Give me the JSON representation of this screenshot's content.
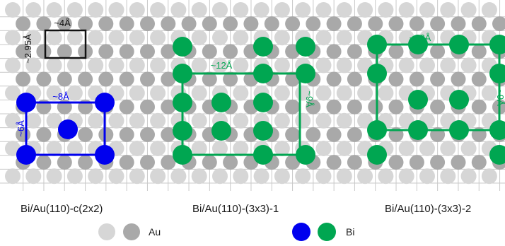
{
  "colors": {
    "au_light": "#d6d6d6",
    "au_dark": "#a9a9a9",
    "bi_blue": "#0000ee",
    "bi_green": "#00a651",
    "unit_cell_black": "#111111",
    "grid_line": "#c9c9c9"
  },
  "panels": [
    {
      "caption": "Bi/Au(110)-c(2x2)",
      "label_top": "~8Å",
      "label_side": "~6Å"
    },
    {
      "caption": "Bi/Au(110)-(3x3)-1",
      "label_top": "~12Å",
      "label_side": "~9Å"
    },
    {
      "caption": "Bi/Au(110)-(3x3)-2",
      "label_top": "~12Å",
      "label_side": "~9Å"
    }
  ],
  "primitive_cell": {
    "label_top": "~4Å",
    "label_side": "~2.95Å"
  },
  "legend": {
    "au_label": "Au",
    "bi_label": "Bi"
  }
}
